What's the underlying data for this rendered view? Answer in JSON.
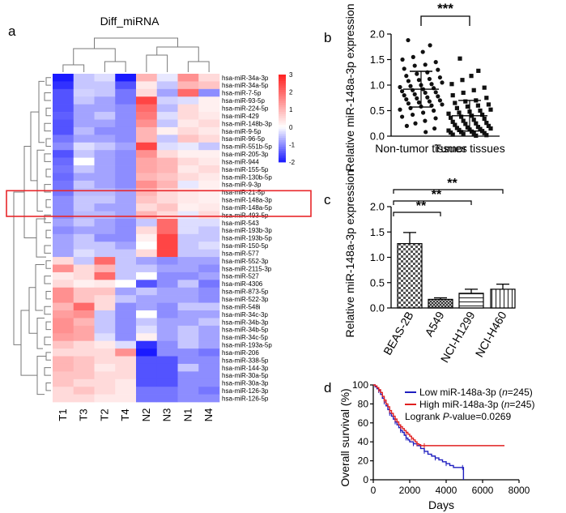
{
  "panels": {
    "a": {
      "letter": "a"
    },
    "b": {
      "letter": "b"
    },
    "c": {
      "letter": "c"
    },
    "d": {
      "letter": "d"
    }
  },
  "chart_data": [
    {
      "panel": "a",
      "type": "heatmap",
      "title": "Diff_miRNA",
      "columns": [
        "T1",
        "T3",
        "T2",
        "T4",
        "N2",
        "N3",
        "N1",
        "N4"
      ],
      "rows": [
        "hsa-miR-34a-3p",
        "hsa-miR-34a-5p",
        "hsa-miR-7-5p",
        "hsa-miR-93-5p",
        "hsa-miR-224-5p",
        "hsa-miR-429",
        "hsa-miR-148b-3p",
        "hsa-miR-9-5p",
        "hsa-miR-96-5p",
        "hsa-miR-551b-5p",
        "hsa-miR-205-3p",
        "hsa-miR-944",
        "hsa-miR-155-5p",
        "hsa-miR-130b-5p",
        "hsa-miR-9-3p",
        "hsa-miR-21-5p",
        "hsa-miR-148a-3p",
        "hsa-miR-148a-5p",
        "hsa-miR-493-5p",
        "hsa-miR-543",
        "hsa-miR-193b-3p",
        "hsa-miR-193b-5p",
        "hsa-miR-150-5p",
        "hsa-miR-577",
        "hsa-miR-552-3p",
        "hsa-miR-2115-3p",
        "hsa-miR-527",
        "hsa-miR-4306",
        "hsa-miR-873-5p",
        "hsa-miR-522-3p",
        "hsa-miR-548i",
        "hsa-miR-34c-3p",
        "hsa-miR-34b-3p",
        "hsa-miR-34b-5p",
        "hsa-miR-34c-5p",
        "hsa-miR-193a-5p",
        "hsa-miR-206",
        "hsa-miR-338-5p",
        "hsa-miR-144-3p",
        "hsa-miR-30a-5p",
        "hsa-miR-30a-3p",
        "hsa-miR-126-3p",
        "hsa-miR-126-5p"
      ],
      "values": [
        [
          -2,
          -0.5,
          -0.3,
          -2,
          1,
          -0.2,
          1.5,
          0.5
        ],
        [
          -1.8,
          -0.5,
          -0.5,
          -1.5,
          0.3,
          -0.5,
          1,
          0.8
        ],
        [
          -1.5,
          -0.4,
          -0.5,
          -1.2,
          0.5,
          -0.8,
          2,
          -1
        ],
        [
          -1.5,
          -0.5,
          -0.8,
          -1.2,
          2.5,
          -0.4,
          -0.3,
          0.2
        ],
        [
          -1.5,
          -0.8,
          -0.8,
          -1,
          2,
          -0.6,
          0.5,
          0.2
        ],
        [
          -1.4,
          -0.8,
          -0.5,
          -1,
          1.8,
          -0.3,
          0.5,
          0.3
        ],
        [
          -1.5,
          -0.8,
          -0.8,
          -1,
          1.5,
          -0.5,
          0.3,
          0.5
        ],
        [
          -1.5,
          -0.6,
          -1,
          -1,
          1,
          0.2,
          0.5,
          0.3
        ],
        [
          -1.2,
          -0.8,
          -0.8,
          -1,
          1,
          -0.5,
          0.8,
          0.5
        ],
        [
          -1,
          -0.3,
          -0.5,
          -0.8,
          2.5,
          -0.3,
          -0.2,
          -0.5
        ],
        [
          -1.5,
          -0.5,
          -0.8,
          -1,
          1.5,
          0.5,
          0.2,
          0.2
        ],
        [
          -1.3,
          0,
          -0.8,
          -1,
          1.2,
          1,
          0.5,
          0.3
        ],
        [
          -1.2,
          -0.5,
          -0.8,
          -1,
          1.2,
          1,
          0.3,
          0.5
        ],
        [
          -1.3,
          -0.8,
          -0.8,
          -1,
          1,
          0.8,
          0.5,
          0.3
        ],
        [
          -1.2,
          -0.5,
          -0.8,
          -1,
          1.5,
          1,
          -0.2,
          0.2
        ],
        [
          -1.2,
          -0.6,
          -0.6,
          -0.8,
          1,
          0.5,
          0.3,
          0.2
        ],
        [
          -1,
          -0.5,
          -0.5,
          -0.8,
          0.8,
          0.5,
          0.3,
          0.2
        ],
        [
          -1,
          -0.5,
          -0.8,
          -0.8,
          0.5,
          0.8,
          0.2,
          0.3
        ],
        [
          -1,
          -0.6,
          -0.6,
          -0.8,
          1,
          0.5,
          -0.2,
          0.5
        ],
        [
          -0.8,
          -0.5,
          -0.8,
          -1,
          -0.5,
          2,
          -0.3,
          -0.3
        ],
        [
          -1,
          -0.8,
          -0.8,
          -1,
          0.5,
          2,
          -0.3,
          -0.5
        ],
        [
          -0.8,
          -0.5,
          -1,
          -1,
          0.2,
          2.5,
          -0.5,
          -0.5
        ],
        [
          -0.8,
          -0.5,
          -0.5,
          -0.8,
          0,
          2.5,
          -0.5,
          -0.3
        ],
        [
          -0.8,
          -0.3,
          -0.5,
          -0.5,
          0.5,
          2.5,
          -0.5,
          -0.5
        ],
        [
          0.5,
          -0.5,
          2,
          -0.5,
          -0.8,
          -1,
          -0.8,
          -0.8
        ],
        [
          1.5,
          0.5,
          1,
          -0.5,
          -0.5,
          -0.8,
          -0.8,
          -1
        ],
        [
          0.3,
          0.5,
          2,
          -0.5,
          0,
          -1,
          -1,
          -0.8
        ],
        [
          0.5,
          0.2,
          0.3,
          0,
          -1.5,
          -1,
          -0.5,
          -1.2
        ],
        [
          1.5,
          0.8,
          0.8,
          -0.8,
          -0.5,
          -0.8,
          -0.8,
          -1
        ],
        [
          1.5,
          0.8,
          0.5,
          -0.5,
          -0.8,
          -0.8,
          -0.8,
          -1
        ],
        [
          1,
          2,
          0.5,
          -1,
          -0.8,
          -1,
          -0.5,
          -0.5
        ],
        [
          1.3,
          1.5,
          -0.5,
          -1,
          0,
          -1,
          -0.8,
          -0.8
        ],
        [
          1.5,
          1,
          -0.5,
          -1,
          -0.5,
          -0.8,
          -0.8,
          -0.5
        ],
        [
          1.5,
          1.2,
          -0.5,
          -1,
          -0.3,
          -0.8,
          -0.5,
          -0.8
        ],
        [
          1.3,
          1.2,
          -0.3,
          -1,
          0.2,
          -0.8,
          -0.5,
          -0.8
        ],
        [
          0.8,
          0.5,
          0.3,
          -0.3,
          -1.8,
          -1,
          -0.5,
          -0.8
        ],
        [
          0.5,
          0.5,
          0.5,
          1.5,
          -2,
          -1,
          -1,
          -1.2
        ],
        [
          1,
          0.8,
          0.5,
          0.5,
          -1.5,
          -1.5,
          -1,
          -1
        ],
        [
          1,
          0.8,
          0.3,
          0.5,
          -1.5,
          -1.5,
          -0.5,
          -1
        ],
        [
          0.8,
          0.8,
          0.5,
          0.5,
          -1.5,
          -1.5,
          -1,
          -1
        ],
        [
          0.8,
          0.5,
          0.5,
          0.3,
          -1.5,
          -1.5,
          -1,
          -1
        ],
        [
          0.5,
          0.8,
          0.5,
          0.3,
          -1.2,
          -1.2,
          -1,
          -1.2
        ],
        [
          0.5,
          0.5,
          0.3,
          0.3,
          -1.2,
          -1.2,
          -1,
          -1
        ]
      ],
      "color_scale": {
        "min": -2,
        "max": 3,
        "ticks": [
          "3",
          "2",
          "1",
          "0",
          "-1",
          "-2"
        ],
        "low": "#1a1aff",
        "mid": "#ffffff",
        "high": "#ff2020"
      },
      "highlighted_rows": [
        "hsa-miR-21-5p",
        "hsa-miR-148a-3p",
        "hsa-miR-148a-5p",
        "hsa-miR-493-5p"
      ],
      "highlight_color": "#e8262a"
    },
    {
      "panel": "b",
      "type": "scatter",
      "ylabel": "Relative miR-148a-3p expression",
      "ylim": [
        0,
        2.0
      ],
      "yticks": [
        "0.0",
        "0.5",
        "1.0",
        "1.5",
        "2.0"
      ],
      "categories": [
        "Non-tumor tissues",
        "Tumor tissues"
      ],
      "markers": [
        "circle",
        "square"
      ],
      "groups": [
        {
          "name": "Non-tumor tissues",
          "mean": 0.92,
          "sd": 0.35,
          "points": [
            1.88,
            1.78,
            1.65,
            1.55,
            1.5,
            1.45,
            1.4,
            1.38,
            1.32,
            1.3,
            1.25,
            1.22,
            1.18,
            1.15,
            1.12,
            1.1,
            1.08,
            1.05,
            1.02,
            1.0,
            0.98,
            0.96,
            0.94,
            0.92,
            0.9,
            0.88,
            0.86,
            0.85,
            0.82,
            0.8,
            0.78,
            0.76,
            0.74,
            0.72,
            0.7,
            0.68,
            0.66,
            0.64,
            0.62,
            0.6,
            0.58,
            0.55,
            0.52,
            0.5,
            0.46,
            0.42,
            0.38,
            0.35,
            0.3,
            0.25,
            0.2,
            0.15,
            0.08
          ]
        },
        {
          "name": "Tumor tissues",
          "mean": 0.4,
          "sd": 0.3,
          "points": [
            1.52,
            1.28,
            1.18,
            1.1,
            1.02,
            0.95,
            0.9,
            0.85,
            0.8,
            0.75,
            0.7,
            0.68,
            0.65,
            0.62,
            0.6,
            0.58,
            0.55,
            0.52,
            0.5,
            0.48,
            0.46,
            0.44,
            0.42,
            0.4,
            0.38,
            0.36,
            0.34,
            0.32,
            0.3,
            0.28,
            0.26,
            0.25,
            0.24,
            0.22,
            0.2,
            0.18,
            0.17,
            0.16,
            0.15,
            0.14,
            0.13,
            0.12,
            0.11,
            0.1,
            0.09,
            0.08,
            0.07,
            0.06,
            0.05,
            0.04,
            0.03,
            0.02,
            0.01
          ]
        }
      ],
      "annotations": [
        {
          "between": [
            "Non-tumor tissues",
            "Tumor tissues"
          ],
          "text": "***"
        }
      ]
    },
    {
      "panel": "c",
      "type": "bar",
      "ylabel": "Relative miR-148a-3p expression",
      "ylim": [
        0,
        2.0
      ],
      "yticks": [
        "0.0",
        "0.5",
        "1.0",
        "1.5",
        "2.0"
      ],
      "categories": [
        "BEAS-2B",
        "A549",
        "NCI-H1299",
        "NCI-H460"
      ],
      "values": [
        1.27,
        0.17,
        0.29,
        0.37
      ],
      "errors": [
        0.22,
        0.03,
        0.08,
        0.1
      ],
      "annotations": [
        {
          "between": [
            "BEAS-2B",
            "A549"
          ],
          "text": "**"
        },
        {
          "between": [
            "BEAS-2B",
            "NCI-H1299"
          ],
          "text": "**"
        },
        {
          "between": [
            "BEAS-2B",
            "NCI-H460"
          ],
          "text": "**"
        }
      ]
    },
    {
      "panel": "d",
      "type": "line",
      "xlabel": "Days",
      "ylabel": "Overall survival (%)",
      "xlim": [
        0,
        8000
      ],
      "ylim": [
        0,
        100
      ],
      "xticks": [
        "0",
        "2000",
        "4000",
        "6000",
        "8000"
      ],
      "yticks": [
        "0",
        "20",
        "40",
        "60",
        "80",
        "100"
      ],
      "series": [
        {
          "name": "Low miR-148a-3p",
          "n_label": "n",
          "n_value": "=245",
          "color": "#1f1fbf",
          "points": [
            [
              0,
              100
            ],
            [
              100,
              98
            ],
            [
              200,
              96
            ],
            [
              300,
              94
            ],
            [
              400,
              90
            ],
            [
              500,
              86
            ],
            [
              600,
              82
            ],
            [
              700,
              78
            ],
            [
              800,
              74
            ],
            [
              900,
              70
            ],
            [
              1000,
              67
            ],
            [
              1100,
              64
            ],
            [
              1200,
              61
            ],
            [
              1300,
              58
            ],
            [
              1400,
              55
            ],
            [
              1500,
              52
            ],
            [
              1600,
              50
            ],
            [
              1700,
              47
            ],
            [
              1800,
              44
            ],
            [
              1900,
              42
            ],
            [
              2000,
              40
            ],
            [
              2200,
              38
            ],
            [
              2400,
              36
            ],
            [
              2600,
              33
            ],
            [
              2800,
              30
            ],
            [
              3000,
              27
            ],
            [
              3200,
              25
            ],
            [
              3400,
              23
            ],
            [
              3600,
              21
            ],
            [
              3800,
              19
            ],
            [
              4000,
              17
            ],
            [
              4200,
              15
            ],
            [
              4400,
              13
            ],
            [
              4900,
              13
            ],
            [
              4950,
              0
            ]
          ]
        },
        {
          "name": "High miR-148a-3p",
          "n_label": "n",
          "n_value": "=245",
          "color": "#e02020",
          "points": [
            [
              0,
              100
            ],
            [
              100,
              99
            ],
            [
              200,
              97
            ],
            [
              300,
              95
            ],
            [
              400,
              92
            ],
            [
              500,
              88
            ],
            [
              600,
              84
            ],
            [
              700,
              80
            ],
            [
              800,
              77
            ],
            [
              900,
              73
            ],
            [
              1000,
              70
            ],
            [
              1100,
              67
            ],
            [
              1200,
              64
            ],
            [
              1300,
              61
            ],
            [
              1400,
              58
            ],
            [
              1500,
              56
            ],
            [
              1600,
              54
            ],
            [
              1700,
              52
            ],
            [
              1800,
              50
            ],
            [
              1900,
              48
            ],
            [
              2000,
              46
            ],
            [
              2100,
              44
            ],
            [
              2200,
              42
            ],
            [
              2300,
              40
            ],
            [
              2400,
              38
            ],
            [
              2500,
              37
            ],
            [
              2600,
              36
            ],
            [
              2800,
              36
            ],
            [
              7200,
              36
            ]
          ]
        }
      ],
      "legend_position": "top-right",
      "stat_label": "Logrank ",
      "stat_p": "P",
      "stat_value": "-value=0.0269"
    }
  ]
}
